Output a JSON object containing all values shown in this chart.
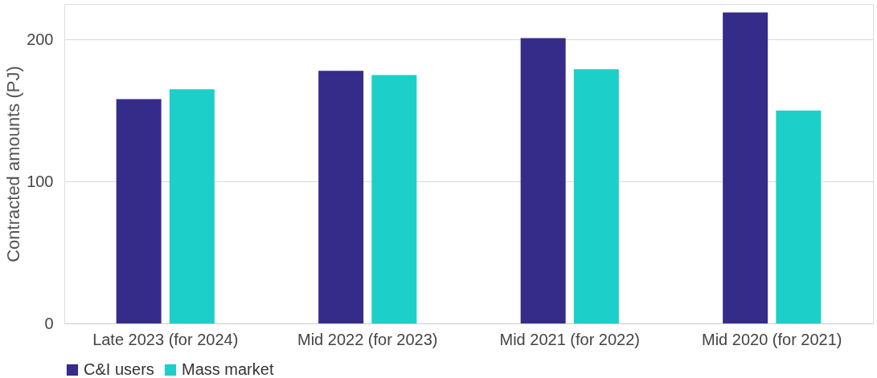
{
  "chart_data": {
    "type": "bar",
    "ylabel": "Contracted amounts (PJ)",
    "categories": [
      "Late 2023 (for 2024)",
      "Mid 2022 (for 2023)",
      "Mid 2021 (for 2022)",
      "Mid 2020 (for 2021)"
    ],
    "series": [
      {
        "name": "C&I users",
        "color": "#352c8a",
        "values": [
          158,
          178,
          201,
          219
        ]
      },
      {
        "name": "Mass market",
        "color": "#1ccfc9",
        "values": [
          165,
          175,
          179,
          150
        ]
      }
    ],
    "ylim": [
      0,
      225
    ],
    "yticks": [
      0,
      100,
      200
    ],
    "grid": "y",
    "legend": "bottom"
  }
}
